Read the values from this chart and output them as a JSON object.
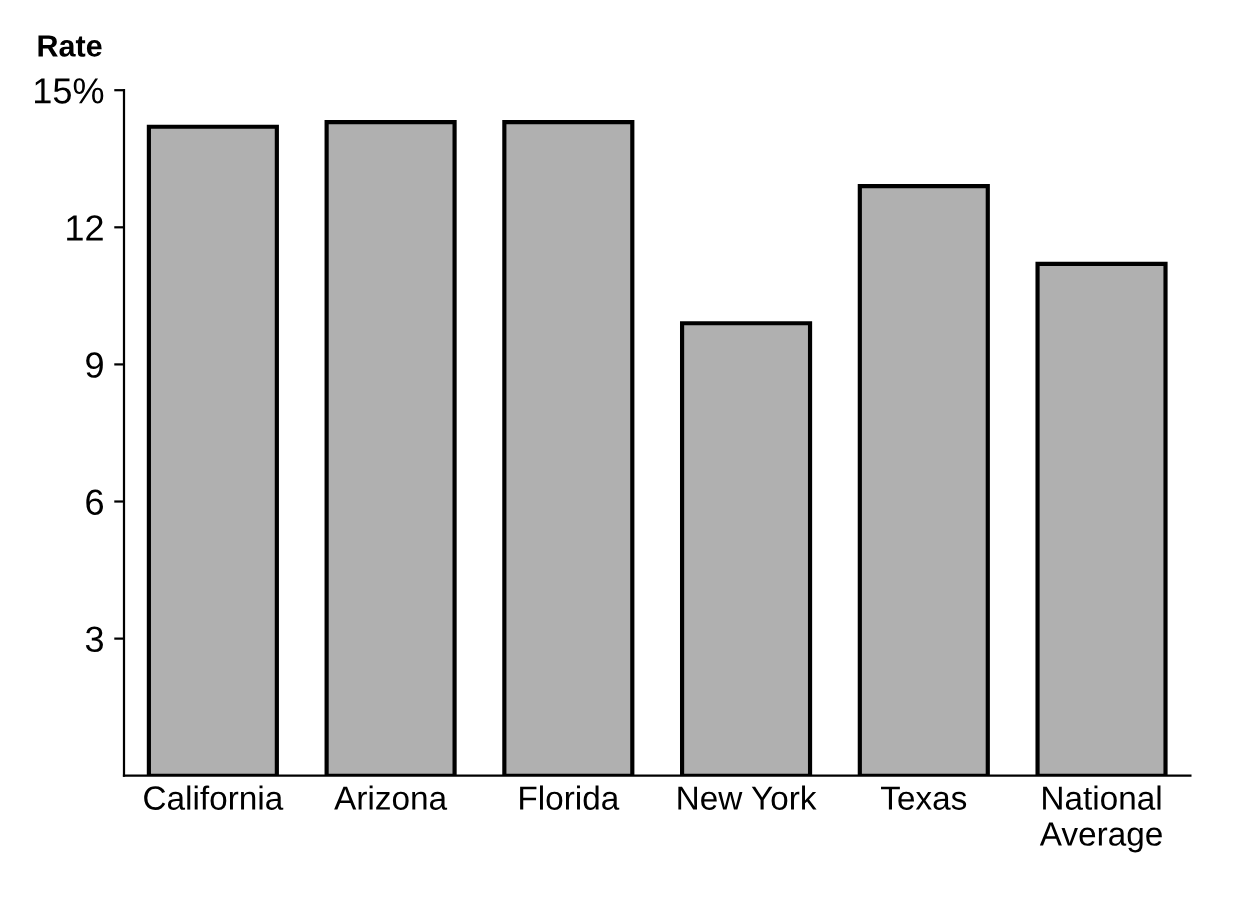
{
  "chart_data": {
    "type": "bar",
    "ylabel": "Rate",
    "categories": [
      "California",
      "Arizona",
      "Florida",
      "New York",
      "Texas",
      "National\nAverage"
    ],
    "values": [
      14.2,
      14.3,
      14.3,
      9.9,
      12.9,
      11.2
    ],
    "color": "#b0b0b0",
    "ylim": [
      0,
      15
    ],
    "yticks": [
      {
        "value": 3,
        "label": "3"
      },
      {
        "value": 6,
        "label": "6"
      },
      {
        "value": 9,
        "label": "9"
      },
      {
        "value": 12,
        "label": "12"
      },
      {
        "value": 15,
        "label": "15%"
      }
    ],
    "grid": false
  }
}
